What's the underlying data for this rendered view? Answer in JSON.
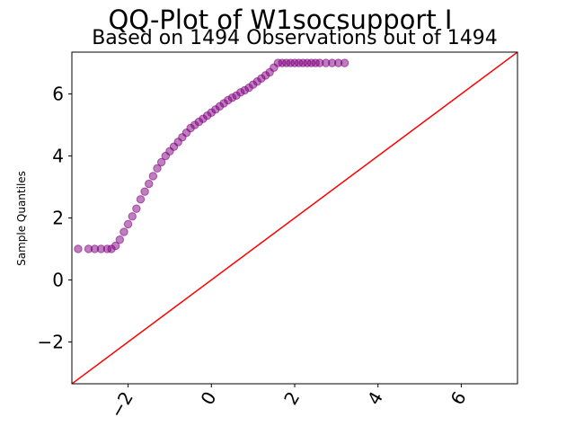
{
  "chart_data": {
    "type": "scatter",
    "title": "QQ-Plot of W1socsupport I",
    "subtitle": "Based on 1494 Observations out of 1494",
    "xlabel": "",
    "ylabel": "Sample Quantiles",
    "xlim": [
      -3.35,
      7.35
    ],
    "ylim": [
      -3.35,
      7.35
    ],
    "xticks": [
      -2,
      0,
      2,
      4,
      6
    ],
    "yticks": [
      -2,
      0,
      2,
      4,
      6
    ],
    "xtick_labels": [
      "−2",
      "0",
      "2",
      "4",
      "6"
    ],
    "ytick_labels": [
      "−2",
      "0",
      "2",
      "4",
      "6"
    ],
    "grid": false,
    "marker_color": "#800080",
    "line_color": "#ff0000",
    "reference_line": {
      "slope": 1,
      "intercept": 0
    },
    "series": [
      {
        "x": [
          -3.2,
          -2.95,
          -2.8,
          -2.65,
          -2.5,
          -2.4,
          -2.3,
          -2.2,
          -2.1,
          -2.0,
          -1.9,
          -1.8,
          -1.7,
          -1.6,
          -1.5,
          -1.4,
          -1.3,
          -1.2,
          -1.1,
          -1.0,
          -0.9,
          -0.8,
          -0.7,
          -0.6,
          -0.5,
          -0.4,
          -0.3,
          -0.2,
          -0.1,
          0.0,
          0.1,
          0.2,
          0.3,
          0.4,
          0.5,
          0.6,
          0.7,
          0.8,
          0.9,
          1.0,
          1.1,
          1.2,
          1.3,
          1.4,
          1.5,
          1.6,
          1.7,
          1.8,
          1.9,
          2.0,
          2.1,
          2.2,
          2.3,
          2.4,
          2.5,
          2.6,
          2.75,
          2.9,
          3.05,
          3.2
        ],
        "y": [
          1.0,
          1.0,
          1.0,
          1.0,
          1.0,
          1.0,
          1.1,
          1.3,
          1.55,
          1.8,
          2.05,
          2.3,
          2.6,
          2.85,
          3.1,
          3.35,
          3.6,
          3.8,
          4.0,
          4.15,
          4.3,
          4.45,
          4.6,
          4.75,
          4.9,
          5.0,
          5.1,
          5.2,
          5.3,
          5.4,
          5.5,
          5.6,
          5.7,
          5.8,
          5.88,
          5.95,
          6.05,
          6.12,
          6.2,
          6.3,
          6.4,
          6.5,
          6.6,
          6.7,
          6.85,
          7.0,
          7.0,
          7.0,
          7.0,
          7.0,
          7.0,
          7.0,
          7.0,
          7.0,
          7.0,
          7.0,
          7.0,
          7.0,
          7.0,
          7.0
        ]
      }
    ]
  }
}
